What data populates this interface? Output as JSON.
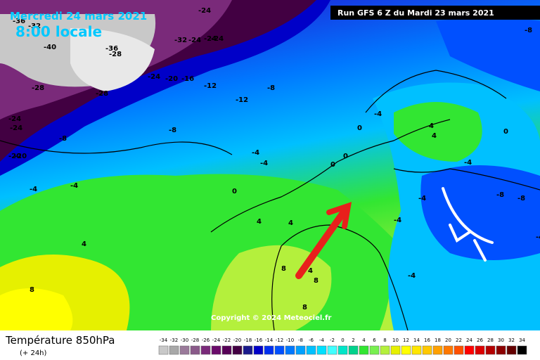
{
  "header": {
    "date": "Mercredi 24 mars 2021",
    "local_time": "8:00 locale",
    "run": "Run GFS 6 Z du Mardi 23 mars 2021"
  },
  "copyright": "Copyright © 2024 Meteociel.fr",
  "footer": {
    "title": "Température 850hPa",
    "lead": "(+ 24h)"
  },
  "legend": {
    "values": [
      -34,
      -32,
      -30,
      -28,
      -26,
      -24,
      -22,
      -20,
      -18,
      -16,
      -14,
      -12,
      -10,
      -8,
      -6,
      -4,
      -2,
      0,
      2,
      4,
      6,
      8,
      10,
      12,
      14,
      16,
      18,
      20,
      22,
      24,
      26,
      28,
      30,
      32,
      34
    ],
    "colors": [
      "#c8c8c8",
      "#a8a8a8",
      "#9a7a9a",
      "#8a5a8a",
      "#7a2a7a",
      "#6a0a6a",
      "#560056",
      "#420042",
      "#1a1a8c",
      "#0000c8",
      "#0030f0",
      "#0050ff",
      "#0078ff",
      "#00a0ff",
      "#00c0ff",
      "#00e0ff",
      "#40ffff",
      "#00e6c8",
      "#00d28c",
      "#32e632",
      "#78f050",
      "#b4f03c",
      "#e6f000",
      "#ffff00",
      "#ffe600",
      "#ffc800",
      "#ffa000",
      "#ff7800",
      "#ff5000",
      "#ff0000",
      "#dc0000",
      "#b40000",
      "#8c0000",
      "#640000",
      "#000000"
    ]
  },
  "map": {
    "contour_labels": [
      "-24",
      "-20",
      "-32",
      "-28",
      "-36",
      "-40",
      "-36",
      "-24",
      "-24",
      "-32",
      "-24",
      "-24",
      "-20",
      "-16",
      "-12",
      "-8",
      "-28",
      "-28",
      "-24",
      "-24",
      "-20",
      "-8",
      "-12",
      "-8",
      "-8",
      "-4",
      "-4",
      "-4",
      "-4",
      "0",
      "0",
      "0",
      "4",
      "4",
      "4",
      "4",
      "8",
      "8",
      "-4",
      "-8",
      "-8",
      "-4",
      "-4",
      "-4",
      "0",
      "0",
      "4",
      "-4",
      "-4",
      "4",
      "8",
      "8"
    ]
  }
}
